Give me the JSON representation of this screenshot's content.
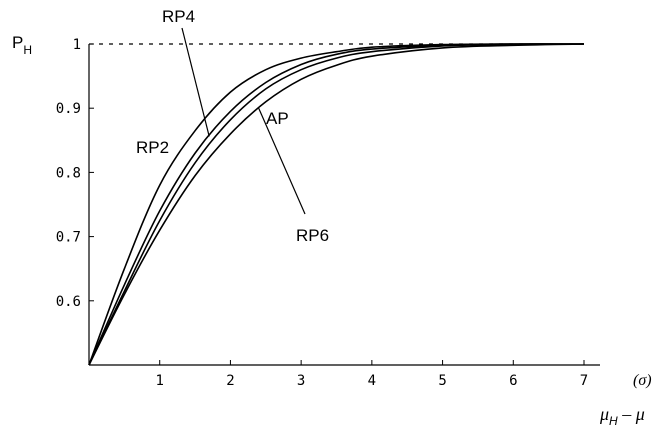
{
  "chart_data": {
    "type": "line",
    "ylabel": {
      "main": "P",
      "sub": "H"
    },
    "xlabel": {
      "main": "μ",
      "sub": "H",
      "rest": " – μ"
    },
    "x_unit": "(σ)",
    "xlim": [
      0,
      7
    ],
    "ylim": [
      0.5,
      1.0
    ],
    "xticks": [
      "1",
      "2",
      "3",
      "4",
      "5",
      "6",
      "7"
    ],
    "yticks": [
      "0.6",
      "0.7",
      "0.8",
      "0.9",
      "1"
    ],
    "reference_line": {
      "y": 1.0,
      "style": "dashed"
    },
    "series": [
      {
        "name": "RP2",
        "x": [
          0,
          0.5,
          1,
          1.5,
          2,
          2.5,
          3,
          3.5,
          4,
          5,
          6,
          7
        ],
        "y": [
          0.5,
          0.65,
          0.78,
          0.865,
          0.925,
          0.96,
          0.978,
          0.988,
          0.995,
          0.999,
          1.0,
          1.0
        ]
      },
      {
        "name": "RP4",
        "x": [
          0,
          0.5,
          1,
          1.5,
          2,
          2.5,
          3,
          3.5,
          4,
          5,
          6,
          7
        ],
        "y": [
          0.5,
          0.625,
          0.74,
          0.83,
          0.895,
          0.94,
          0.968,
          0.984,
          0.992,
          0.998,
          1.0,
          1.0
        ]
      },
      {
        "name": "AP",
        "x": [
          0,
          0.5,
          1,
          1.5,
          2,
          2.5,
          3,
          3.5,
          4,
          5,
          6,
          7
        ],
        "y": [
          0.5,
          0.615,
          0.725,
          0.815,
          0.882,
          0.93,
          0.96,
          0.978,
          0.988,
          0.997,
          0.999,
          1.0
        ]
      },
      {
        "name": "RP6",
        "x": [
          0,
          0.5,
          1,
          1.5,
          2,
          2.5,
          3,
          3.5,
          4,
          5,
          6,
          7
        ],
        "y": [
          0.5,
          0.61,
          0.71,
          0.795,
          0.86,
          0.91,
          0.945,
          0.967,
          0.981,
          0.994,
          0.998,
          1.0
        ]
      }
    ],
    "annotations": [
      {
        "text": "RP4",
        "series": "RP4",
        "at_x": 1.7
      },
      {
        "text": "RP2",
        "series": "RP2",
        "at_x": 1.0
      },
      {
        "text": "AP",
        "series": "AP",
        "at_x": 2.7
      },
      {
        "text": "RP6",
        "series": "RP6",
        "at_x": 2.4
      }
    ]
  }
}
